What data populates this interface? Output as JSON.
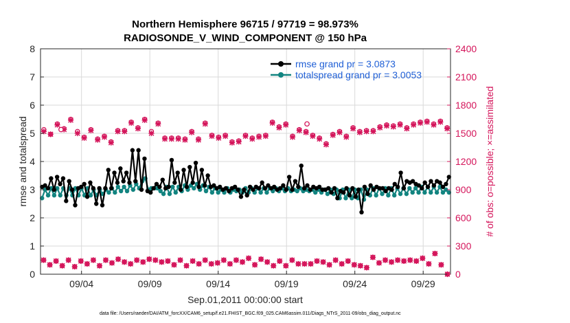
{
  "chart_data": {
    "type": "line",
    "title": "Northern Hemisphere 96715 / 97719 = 98.973%",
    "subtitle": "RADIOSONDE_V_WIND_COMPONENT @ 150 hPa",
    "xlabel": "Sep.01,2011 00:00:00 start",
    "ylabel": "rmse and totalspread",
    "ylabel_right": "# of obs: o=possible; ×=assimilated",
    "xlim": [
      0,
      30
    ],
    "ylim": [
      0,
      8
    ],
    "ylim_right": [
      0,
      2400
    ],
    "x_ticks": [
      3,
      8,
      13,
      18,
      23,
      28
    ],
    "x_tick_labels": [
      "09/04",
      "09/09",
      "09/14",
      "09/19",
      "09/24",
      "09/29"
    ],
    "y_ticks": [
      0,
      1,
      2,
      3,
      4,
      5,
      6,
      7,
      8
    ],
    "y_tick_labels": [
      "0",
      "1",
      "2",
      "3",
      "4",
      "5",
      "6",
      "7",
      "8"
    ],
    "y_right_ticks": [
      0,
      300,
      600,
      900,
      1200,
      1500,
      1800,
      2100,
      2400
    ],
    "y_right_tick_labels": [
      "0",
      "300",
      "600",
      "900",
      "1200",
      "1500",
      "1800",
      "2100",
      "2400"
    ],
    "grid": true,
    "legend_position": "top-right",
    "footnote": "data file: /Users/raeder/DAI/ATM_forcXX/CAM6_setup/f.e21.FHIST_BGC.f09_025.CAM6assim.011/Diags_NTrS_2011-09/obs_diag_output.nc",
    "colors": {
      "rmse": "#000000",
      "totalspread": "#128480",
      "obs": "#d4145a",
      "legend_text": "#1f5fd6",
      "right_axis": "#d4145a"
    },
    "series": [
      {
        "name": "rmse grand pr = 3.0873",
        "axis": "left",
        "color": "#000000",
        "marker": "circle",
        "values": [
          3.1,
          3.15,
          3.05,
          3.4,
          3.0,
          3.45,
          3.2,
          3.4,
          2.6,
          3.3,
          3.0,
          2.45,
          3.05,
          3.1,
          3.2,
          2.75,
          3.25,
          3.05,
          2.5,
          3.05,
          2.45,
          3.05,
          3.7,
          3.05,
          3.6,
          3.25,
          3.75,
          3.3,
          3.6,
          3.25,
          4.4,
          3.3,
          4.4,
          3.0,
          4.1,
          2.95,
          2.9,
          3.05,
          3.2,
          3.1,
          3.35,
          3.05,
          3.1,
          4.05,
          3.25,
          3.6,
          3.0,
          3.7,
          3.1,
          3.8,
          3.25,
          3.95,
          3.1,
          3.7,
          3.15,
          3.5,
          3.1,
          3.15,
          3.05,
          3.1,
          3.0,
          3.05,
          2.95,
          3.05,
          3.1,
          3.0,
          2.75,
          3.0,
          2.8,
          3.1,
          3.0,
          3.1,
          3.05,
          3.25,
          3.05,
          3.15,
          3.05,
          3.1,
          3.0,
          3.05,
          3.15,
          3.0,
          3.45,
          3.0,
          3.3,
          3.1,
          3.85,
          3.05,
          3.15,
          3.0,
          3.1,
          3.05,
          3.1,
          3.0,
          3.0,
          3.05,
          2.9,
          3.05,
          2.7,
          2.95,
          2.9,
          3.05,
          2.8,
          3.05,
          2.75,
          3.0,
          2.2,
          3.1,
          2.85,
          3.15,
          3.0,
          3.1,
          3.05,
          3.05,
          2.95,
          3.05,
          3.0,
          3.2,
          3.1,
          3.6,
          3.05,
          3.3,
          3.25,
          3.3,
          3.2,
          3.15,
          3.05,
          3.25,
          3.1,
          3.3,
          3.15,
          3.3,
          3.25,
          3.1,
          3.2,
          3.45
        ]
      },
      {
        "name": "totalspread grand pr = 3.0053",
        "axis": "left",
        "color": "#128480",
        "marker": "circle",
        "values": [
          2.7,
          3.0,
          2.8,
          3.05,
          2.8,
          3.05,
          2.8,
          3.05,
          2.8,
          3.05,
          2.8,
          3.05,
          2.8,
          3.05,
          2.8,
          3.05,
          2.8,
          3.0,
          2.8,
          3.0,
          2.85,
          3.0,
          2.9,
          3.05,
          2.9,
          3.1,
          2.95,
          3.1,
          2.95,
          3.15,
          3.0,
          3.2,
          3.05,
          3.3,
          3.4,
          3.0,
          3.05,
          3.05,
          3.05,
          2.95,
          2.85,
          3.1,
          2.85,
          3.1,
          2.9,
          3.1,
          2.95,
          3.15,
          3.0,
          3.15,
          3.05,
          3.2,
          3.0,
          3.15,
          2.95,
          3.1,
          2.9,
          3.05,
          2.9,
          3.0,
          2.9,
          3.05,
          2.9,
          3.0,
          2.95,
          3.0,
          2.9,
          3.05,
          2.9,
          3.05,
          2.9,
          3.05,
          2.9,
          3.05,
          2.9,
          3.05,
          2.95,
          3.05,
          2.95,
          3.05,
          2.95,
          3.05,
          2.95,
          3.0,
          2.95,
          3.05,
          2.95,
          3.0,
          2.95,
          3.0,
          2.9,
          3.0,
          2.9,
          3.0,
          2.85,
          3.0,
          2.85,
          3.0,
          2.7,
          3.0,
          2.7,
          3.0,
          2.7,
          3.0,
          2.7,
          3.0,
          2.65,
          3.0,
          2.8,
          3.05,
          2.8,
          3.05,
          2.85,
          3.05,
          2.8,
          3.05,
          2.8,
          3.05,
          2.85,
          3.05,
          2.85,
          3.05,
          2.9,
          3.05,
          2.9,
          3.1,
          2.9,
          3.1,
          2.9,
          3.1,
          2.9,
          3.1,
          2.9,
          3.0,
          2.9
        ]
      },
      {
        "name": "obs possible",
        "axis": "right",
        "color": "#d4145a",
        "marker": "o",
        "values": [
          1540,
          1490,
          1600,
          1550,
          1650,
          1520,
          1460,
          1540,
          1440,
          1470,
          1410,
          1530,
          1530,
          1620,
          1560,
          1650,
          1520,
          1610,
          1450,
          1450,
          1450,
          1440,
          1520,
          1440,
          1610,
          1480,
          1460,
          1480,
          1410,
          1420,
          1480,
          1450,
          1470,
          1480,
          1620,
          1570,
          1600,
          1470,
          1540,
          1520,
          1480,
          1450,
          1390,
          1490,
          1520,
          1470,
          1560,
          1520,
          1530,
          1530,
          1570,
          1590,
          1580,
          1600,
          1560,
          1600,
          1620,
          1630,
          1600,
          1630,
          1560
        ]
      },
      {
        "name": "obs assimilated",
        "axis": "right",
        "color": "#d4145a",
        "marker": "x",
        "values": [
          1520,
          1490,
          1590,
          1540,
          1640,
          1500,
          1450,
          1530,
          1430,
          1460,
          1400,
          1520,
          1520,
          1610,
          1550,
          1640,
          1500,
          1600,
          1440,
          1440,
          1440,
          1430,
          1510,
          1430,
          1600,
          1470,
          1450,
          1470,
          1400,
          1410,
          1470,
          1440,
          1460,
          1470,
          1610,
          1560,
          1590,
          1460,
          1530,
          1510,
          1470,
          1440,
          1380,
          1480,
          1510,
          1460,
          1550,
          1510,
          1520,
          1520,
          1560,
          1580,
          1570,
          1590,
          1550,
          1590,
          1610,
          1620,
          1590,
          1620,
          1550
        ]
      },
      {
        "name": "obs possible (low)",
        "axis": "right",
        "color": "#d4145a",
        "marker": "o",
        "values": [
          150,
          100,
          140,
          90,
          150,
          80,
          140,
          110,
          150,
          90,
          150,
          120,
          160,
          130,
          110,
          150,
          130,
          160,
          150,
          130,
          140,
          100,
          150,
          90,
          140,
          110,
          150,
          110,
          120,
          150,
          110,
          150,
          130,
          170,
          100,
          160,
          130,
          90,
          140,
          90,
          150,
          110,
          110,
          110,
          140,
          130,
          100,
          150,
          110,
          140,
          100,
          90,
          70,
          180,
          120,
          150,
          130,
          150,
          140,
          150,
          140,
          170,
          110,
          220,
          100,
          0
        ]
      },
      {
        "name": "obs assimilated (low)",
        "axis": "right",
        "color": "#d4145a",
        "marker": "x",
        "values": [
          150,
          100,
          140,
          90,
          150,
          80,
          140,
          110,
          150,
          90,
          150,
          120,
          160,
          130,
          110,
          150,
          130,
          160,
          150,
          130,
          140,
          100,
          150,
          90,
          140,
          110,
          150,
          110,
          120,
          150,
          110,
          150,
          130,
          170,
          100,
          160,
          130,
          90,
          140,
          90,
          150,
          110,
          110,
          110,
          140,
          130,
          100,
          150,
          110,
          140,
          100,
          90,
          70,
          180,
          120,
          150,
          130,
          150,
          140,
          150,
          140,
          170,
          110,
          220,
          100,
          0
        ]
      }
    ],
    "hollow_markers": [
      {
        "series": "obs possible",
        "x": 1.5,
        "y": 1540
      },
      {
        "series": "obs possible",
        "x": 19.5,
        "y": 1600
      }
    ]
  }
}
